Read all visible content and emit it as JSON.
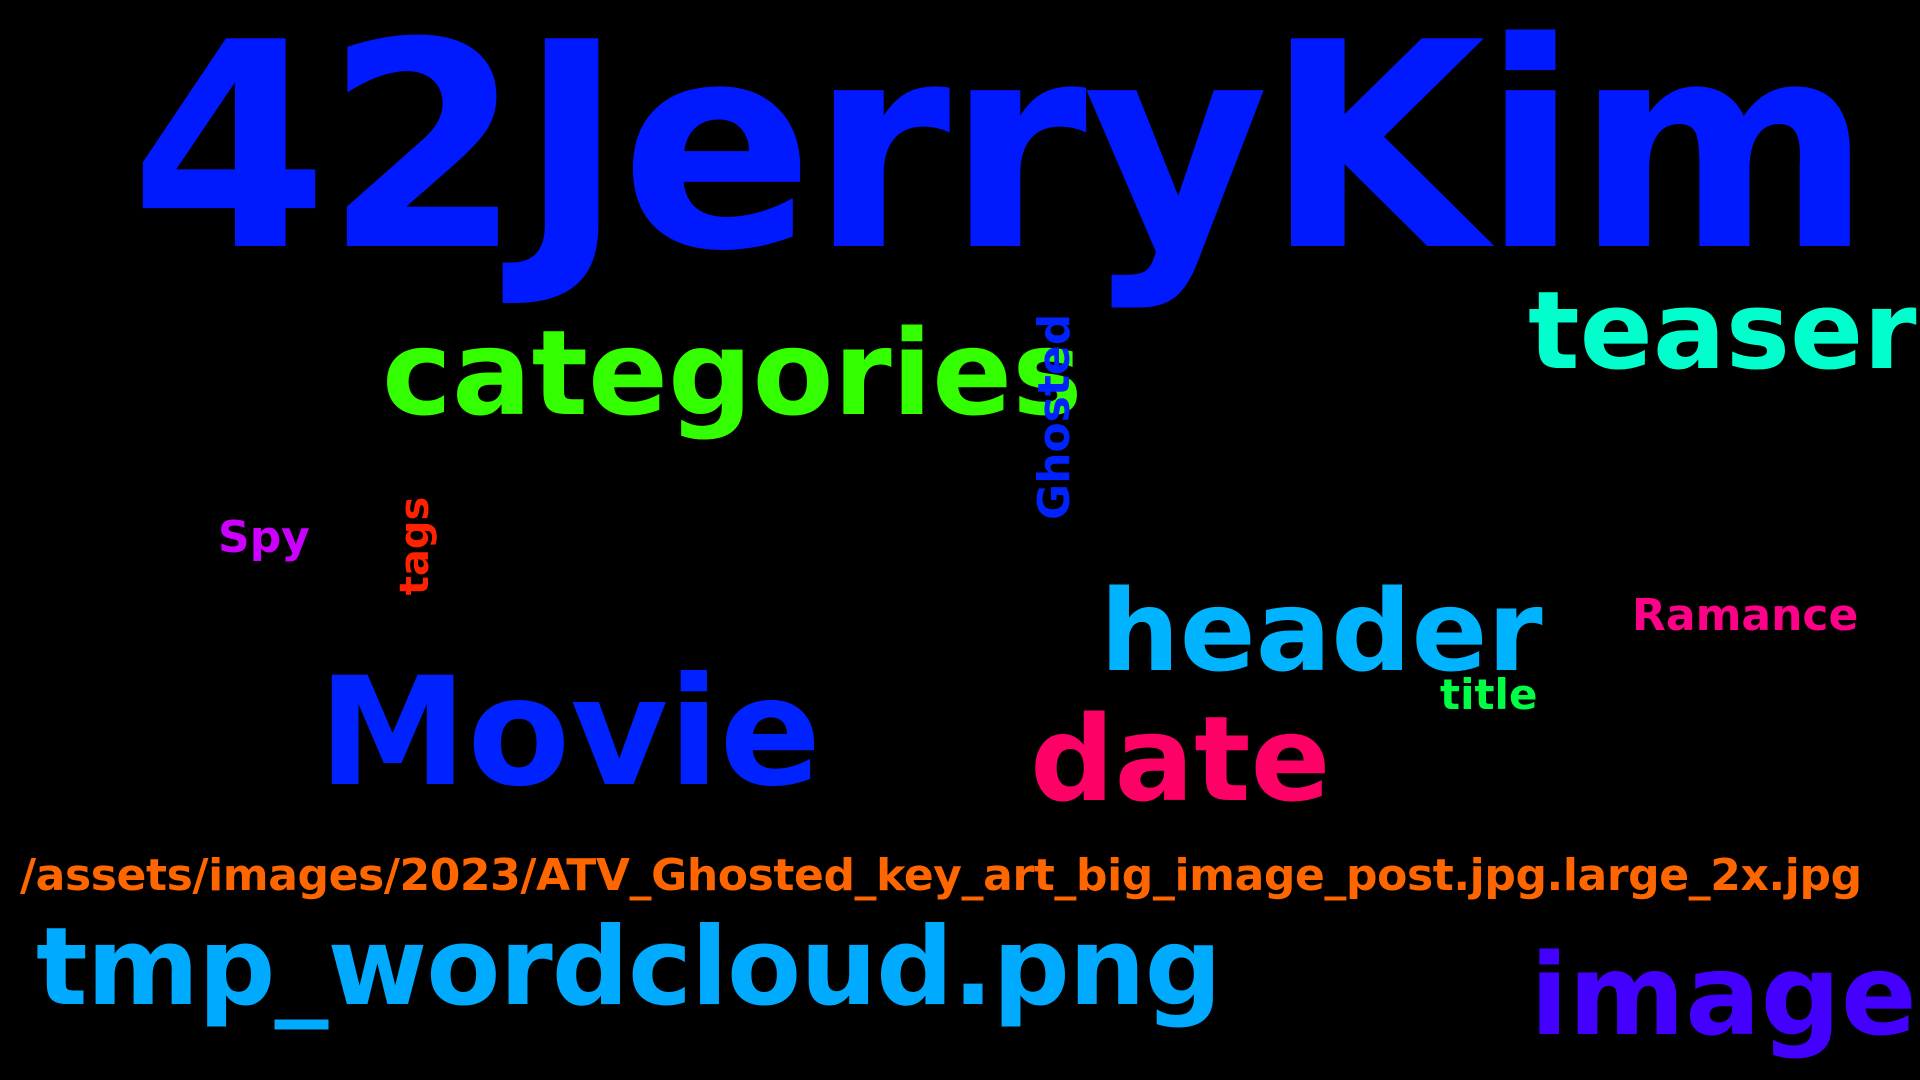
{
  "words": {
    "w42jerrykim": {
      "text": "42JerryKim",
      "color": "#0019ff"
    },
    "teaser": {
      "text": "teaser",
      "color": "#00ffcc"
    },
    "categories": {
      "text": "categories",
      "color": "#33ff00"
    },
    "ghosted": {
      "text": "Ghosted",
      "color": "#0022ff"
    },
    "spy": {
      "text": "Spy",
      "color": "#cc00ff"
    },
    "tags": {
      "text": "tags",
      "color": "#ff2200"
    },
    "header": {
      "text": "header",
      "color": "#00b3ff"
    },
    "ramance": {
      "text": "Ramance",
      "color": "#ff0088"
    },
    "title": {
      "text": "title",
      "color": "#00ff44"
    },
    "movie": {
      "text": "Movie",
      "color": "#0022ff"
    },
    "date": {
      "text": "date",
      "color": "#ff0066"
    },
    "path": {
      "text": "/assets/images/2023/ATV_Ghosted_key_art_big_image_post.jpg.large_2x.jpg",
      "color": "#ff6600"
    },
    "tmp": {
      "text": "tmp_wordcloud.png",
      "color": "#00aaff"
    },
    "image": {
      "text": "image",
      "color": "#4400ff"
    }
  }
}
